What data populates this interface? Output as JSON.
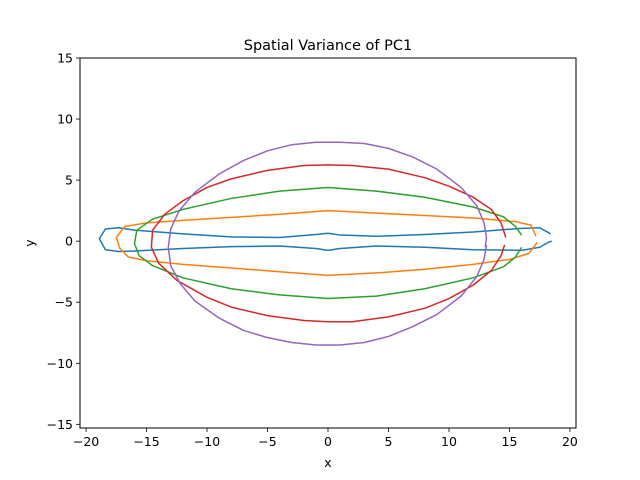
{
  "chart_data": {
    "type": "line",
    "title": "Spatial Variance of PC1",
    "xlabel": "x",
    "ylabel": "y",
    "xlim": [
      -20.5,
      20.5
    ],
    "ylim": [
      -15.3,
      15
    ],
    "xticks": [
      -20,
      -15,
      -10,
      -5,
      0,
      5,
      10,
      15,
      20
    ],
    "yticks": [
      -15,
      -10,
      -5,
      0,
      5,
      10,
      15
    ],
    "xtick_labels": [
      "−20",
      "−15",
      "−10",
      "−5",
      "0",
      "5",
      "10",
      "15",
      "20"
    ],
    "ytick_labels": [
      "−15",
      "−10",
      "−5",
      "0",
      "5",
      "10",
      "15"
    ],
    "grid": false,
    "series": [
      {
        "color": "#1f77b4",
        "closed": false,
        "points": [
          [
            18.4,
            0.6
          ],
          [
            17.5,
            1.1
          ],
          [
            16,
            1.05
          ],
          [
            12,
            0.75
          ],
          [
            8,
            0.55
          ],
          [
            4,
            0.4
          ],
          [
            1,
            0.5
          ],
          [
            0,
            0.65
          ],
          [
            -1,
            0.55
          ],
          [
            -4,
            0.3
          ],
          [
            -8,
            0.35
          ],
          [
            -12,
            0.6
          ],
          [
            -16,
            0.9
          ],
          [
            -17.3,
            1.1
          ],
          [
            -18.4,
            1.0
          ],
          [
            -18.9,
            0.2
          ],
          [
            -18.4,
            -0.7
          ],
          [
            -17.3,
            -0.85
          ],
          [
            -16,
            -0.8
          ],
          [
            -12,
            -0.6
          ],
          [
            -8,
            -0.45
          ],
          [
            -4,
            -0.4
          ],
          [
            -1,
            -0.6
          ],
          [
            0,
            -0.75
          ],
          [
            1,
            -0.6
          ],
          [
            4,
            -0.4
          ],
          [
            8,
            -0.5
          ],
          [
            12,
            -0.7
          ],
          [
            16,
            -0.75
          ],
          [
            17.5,
            -0.5
          ],
          [
            18.3,
            -0.05
          ],
          [
            18.5,
            0.0
          ]
        ]
      },
      {
        "color": "#ff7f0e",
        "closed": false,
        "points": [
          [
            17.2,
            0.4
          ],
          [
            16.8,
            1.3
          ],
          [
            15.5,
            1.6
          ],
          [
            12,
            1.9
          ],
          [
            8,
            2.1
          ],
          [
            4,
            2.3
          ],
          [
            0,
            2.5
          ],
          [
            -4,
            2.2
          ],
          [
            -8,
            1.95
          ],
          [
            -12,
            1.7
          ],
          [
            -15,
            1.5
          ],
          [
            -16.8,
            1.2
          ],
          [
            -17.5,
            0.3
          ],
          [
            -17.2,
            -0.6
          ],
          [
            -16.5,
            -1.3
          ],
          [
            -15,
            -1.6
          ],
          [
            -12,
            -1.9
          ],
          [
            -8,
            -2.2
          ],
          [
            -4,
            -2.5
          ],
          [
            0,
            -2.8
          ],
          [
            2,
            -2.7
          ],
          [
            4,
            -2.6
          ],
          [
            8,
            -2.3
          ],
          [
            12,
            -1.9
          ],
          [
            15,
            -1.5
          ],
          [
            16.6,
            -1.0
          ],
          [
            17.3,
            -0.1
          ]
        ]
      },
      {
        "color": "#2ca02c",
        "closed": false,
        "points": [
          [
            16,
            0.5
          ],
          [
            15.5,
            1.2
          ],
          [
            14.5,
            2.0
          ],
          [
            12,
            2.8
          ],
          [
            8,
            3.6
          ],
          [
            4,
            4.1
          ],
          [
            0,
            4.4
          ],
          [
            -4,
            4.1
          ],
          [
            -8,
            3.5
          ],
          [
            -12,
            2.6
          ],
          [
            -14.5,
            1.8
          ],
          [
            -15.8,
            0.9
          ],
          [
            -16,
            -0.2
          ],
          [
            -15.6,
            -1.2
          ],
          [
            -14.5,
            -2.0
          ],
          [
            -12,
            -3.0
          ],
          [
            -8,
            -3.9
          ],
          [
            -4,
            -4.4
          ],
          [
            0,
            -4.7
          ],
          [
            4,
            -4.5
          ],
          [
            8,
            -3.9
          ],
          [
            12,
            -3.0
          ],
          [
            14.5,
            -2.1
          ],
          [
            15.5,
            -1.3
          ],
          [
            16,
            -0.5
          ]
        ]
      },
      {
        "color": "#d62728",
        "closed": false,
        "points": [
          [
            14.7,
            0.3
          ],
          [
            14.3,
            1.5
          ],
          [
            13.5,
            2.6
          ],
          [
            12,
            3.6
          ],
          [
            10,
            4.5
          ],
          [
            8,
            5.2
          ],
          [
            5,
            5.9
          ],
          [
            2,
            6.2
          ],
          [
            0,
            6.25
          ],
          [
            -2,
            6.2
          ],
          [
            -5,
            5.8
          ],
          [
            -8,
            5.1
          ],
          [
            -10,
            4.4
          ],
          [
            -12,
            3.3
          ],
          [
            -13.5,
            2.2
          ],
          [
            -14.5,
            0.9
          ],
          [
            -14.6,
            -0.5
          ],
          [
            -14,
            -1.8
          ],
          [
            -12.5,
            -3.2
          ],
          [
            -10,
            -4.6
          ],
          [
            -8,
            -5.4
          ],
          [
            -5,
            -6.1
          ],
          [
            -2,
            -6.5
          ],
          [
            0,
            -6.6
          ],
          [
            2,
            -6.6
          ],
          [
            5,
            -6.2
          ],
          [
            8,
            -5.5
          ],
          [
            10,
            -4.7
          ],
          [
            12,
            -3.6
          ],
          [
            13.5,
            -2.4
          ],
          [
            14.3,
            -1.2
          ],
          [
            14.6,
            -0.3
          ]
        ]
      },
      {
        "color": "#9467bd",
        "closed": false,
        "points": [
          [
            13,
            -0.5
          ],
          [
            13.1,
            0.3
          ],
          [
            12.9,
            1.5
          ],
          [
            12.3,
            2.9
          ],
          [
            11,
            4.4
          ],
          [
            9,
            5.9
          ],
          [
            7,
            6.9
          ],
          [
            5,
            7.6
          ],
          [
            3,
            8.0
          ],
          [
            1,
            8.1
          ],
          [
            -1,
            8.1
          ],
          [
            -3,
            7.9
          ],
          [
            -5,
            7.4
          ],
          [
            -7,
            6.6
          ],
          [
            -9,
            5.5
          ],
          [
            -11,
            4.0
          ],
          [
            -12.3,
            2.5
          ],
          [
            -13,
            1.0
          ],
          [
            -13.2,
            -0.5
          ],
          [
            -13,
            -2.0
          ],
          [
            -12.2,
            -3.5
          ],
          [
            -11,
            -4.9
          ],
          [
            -9,
            -6.3
          ],
          [
            -7,
            -7.3
          ],
          [
            -5,
            -7.9
          ],
          [
            -3,
            -8.3
          ],
          [
            -1,
            -8.5
          ],
          [
            1,
            -8.5
          ],
          [
            3,
            -8.3
          ],
          [
            5,
            -7.8
          ],
          [
            7,
            -7.0
          ],
          [
            9,
            -6.0
          ],
          [
            11,
            -4.5
          ],
          [
            12.3,
            -2.9
          ],
          [
            12.9,
            -1.5
          ],
          [
            13.1,
            -0.3
          ]
        ]
      }
    ]
  }
}
